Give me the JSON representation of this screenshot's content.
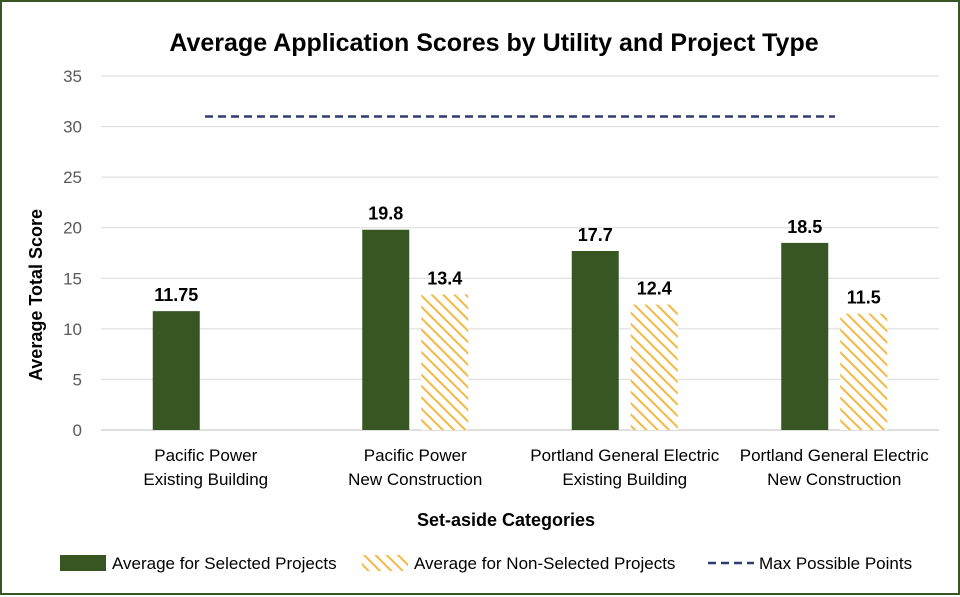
{
  "chart_data": {
    "type": "bar",
    "title": "Average Application Scores by Utility and Project Type",
    "xlabel": "Set-aside Categories",
    "ylabel": "Average Total Score",
    "ylim": [
      0,
      35
    ],
    "yticks": [
      0,
      5,
      10,
      15,
      20,
      25,
      30,
      35
    ],
    "grid": true,
    "legend_position": "bottom",
    "categories": [
      [
        "Pacific Power",
        "Existing Building"
      ],
      [
        "Pacific Power",
        "New Construction"
      ],
      [
        "Portland General Electric",
        "Existing Building"
      ],
      [
        "Portland General Electric",
        "New Construction"
      ]
    ],
    "series": [
      {
        "name": "Average for Selected Projects",
        "values": [
          11.75,
          19.8,
          17.7,
          18.5
        ],
        "labels": [
          "11.75",
          "19.8",
          "17.7",
          "18.5"
        ],
        "color": "#375623",
        "style": "solid"
      },
      {
        "name": "Average for Non-Selected Projects",
        "values": [
          null,
          13.4,
          12.4,
          11.5
        ],
        "labels": [
          "",
          "13.4",
          "12.4",
          "11.5"
        ],
        "color": "#F4B942",
        "style": "hatched"
      }
    ],
    "reference_line": {
      "name": "Max Possible Points",
      "value": 31,
      "color": "#2F3D70",
      "style": "dashed"
    }
  }
}
